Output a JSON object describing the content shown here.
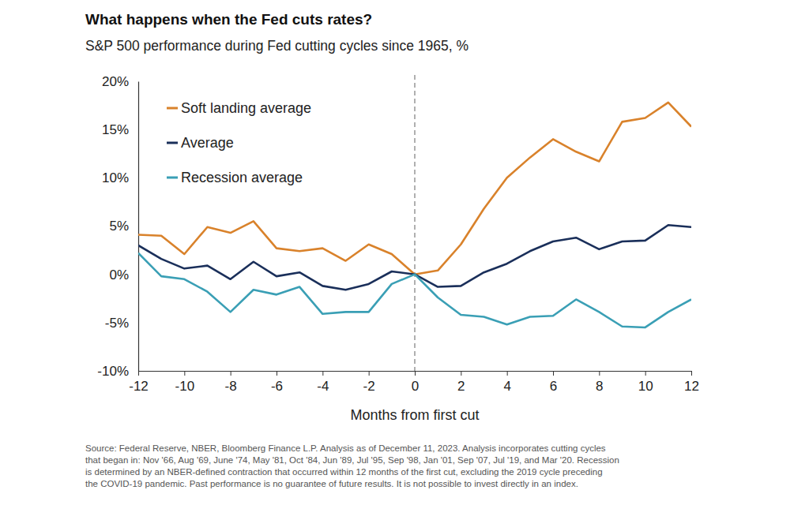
{
  "chart_data": {
    "type": "line",
    "title": "What happens when the Fed cuts rates?",
    "subtitle": "S&P 500 performance during Fed cutting cycles since 1965, %",
    "x_label": "Months from first cut",
    "footnote": [
      "Source: Federal Reserve, NBER, Bloomberg Finance L.P. Analysis as of December 11, 2023. Analysis incorporates cutting cycles",
      "that began in: Nov '66, Aug '69, June '74, May '81, Oct '84, Jun '89, Jul '95, Sep '98, Jan '01, Sep '07, Jul '19, and Mar '20. Recession",
      "is determined by an NBER-defined contraction that occurred within 12 months of the first cut, excluding the 2019 cycle preceding",
      "the COVID-19 pandemic. Past performance is no guarantee of future results. It is not possible to invest directly in an index."
    ],
    "x": [
      -12,
      -11,
      -10,
      -9,
      -8,
      -7,
      -6,
      -5,
      -4,
      -3,
      -2,
      -1,
      0,
      1,
      2,
      3,
      4,
      5,
      6,
      7,
      8,
      9,
      10,
      11,
      12
    ],
    "series": [
      {
        "name": "Soft landing average",
        "color": "#d9822b",
        "values": [
          4.1,
          4.0,
          2.1,
          4.9,
          4.3,
          5.5,
          2.7,
          2.4,
          2.7,
          1.4,
          3.1,
          2.1,
          0,
          0.4,
          3.1,
          6.8,
          10.0,
          12.1,
          14.0,
          12.7,
          11.7,
          15.8,
          16.2,
          17.8,
          15.3
        ]
      },
      {
        "name": "Average",
        "color": "#1a2f5a",
        "values": [
          3.0,
          1.6,
          0.6,
          0.9,
          -0.5,
          1.3,
          -0.2,
          0.2,
          -1.2,
          -1.6,
          -1.0,
          0.3,
          0,
          -1.3,
          -1.2,
          0.2,
          1.1,
          2.4,
          3.4,
          3.8,
          2.6,
          3.4,
          3.5,
          5.1,
          4.9
        ]
      },
      {
        "name": "Recession average",
        "color": "#3a9fb5",
        "values": [
          2.2,
          -0.2,
          -0.5,
          -1.8,
          -3.9,
          -1.6,
          -2.1,
          -1.3,
          -4.1,
          -3.9,
          -3.9,
          -1.0,
          0,
          -2.4,
          -4.2,
          -4.4,
          -5.2,
          -4.4,
          -4.3,
          -2.6,
          -3.9,
          -5.4,
          -5.5,
          -3.9,
          -2.6
        ]
      }
    ],
    "xlim": [
      -12,
      12
    ],
    "xticks": [
      -12,
      -10,
      -8,
      -6,
      -4,
      -2,
      0,
      2,
      4,
      6,
      8,
      10,
      12
    ],
    "ylim": [
      -10,
      20
    ],
    "yticks": [
      {
        "value": -10,
        "label": "-10%"
      },
      {
        "value": -5,
        "label": "-5%"
      },
      {
        "value": 0,
        "label": "0%"
      },
      {
        "value": 5,
        "label": "5%"
      },
      {
        "value": 10,
        "label": "10%"
      },
      {
        "value": 15,
        "label": "15%"
      },
      {
        "value": 20,
        "label": "20%"
      }
    ],
    "grid": false,
    "legend": "upper left"
  }
}
